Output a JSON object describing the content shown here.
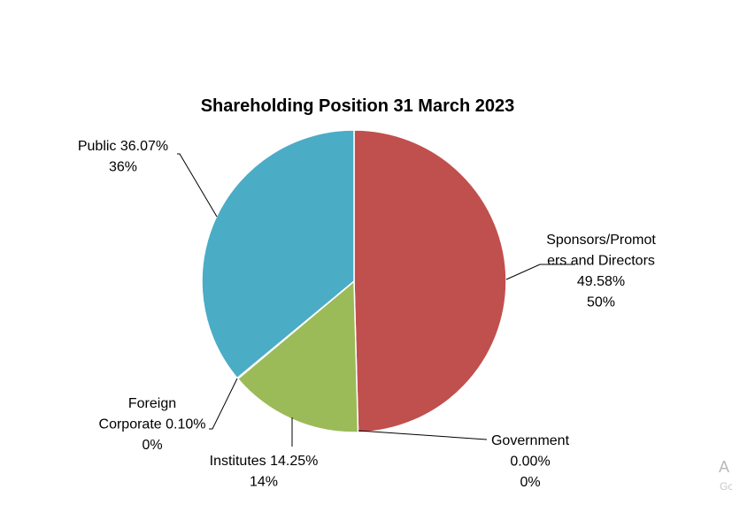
{
  "chart_data": {
    "type": "pie",
    "title": "Shareholding Position 31 March 2023",
    "categories": [
      "Sponsors/Promoters and Directors",
      "Government",
      "Institutes",
      "Foreign Corporate",
      "Public"
    ],
    "values": [
      49.58,
      0.0,
      14.25,
      0.1,
      36.07
    ],
    "colors": [
      "#c0504d",
      "#c0504d",
      "#9bbb59",
      "#4bacc6",
      "#4bacc6"
    ],
    "labels": [
      {
        "lines": [
          "Sponsors/Promot",
          "ers and Directors",
          "49.58%",
          "50%"
        ]
      },
      {
        "lines": [
          "Government",
          "0.00%",
          "0%"
        ]
      },
      {
        "lines": [
          "Institutes 14.25%",
          "14%"
        ]
      },
      {
        "lines": [
          "Foreign",
          "Corporate 0.10%",
          "0%"
        ]
      },
      {
        "lines": [
          "Public 36.07%",
          "36%"
        ]
      }
    ],
    "legend": "none"
  },
  "edge_text": {
    "letter": "A",
    "small": "Gc"
  }
}
